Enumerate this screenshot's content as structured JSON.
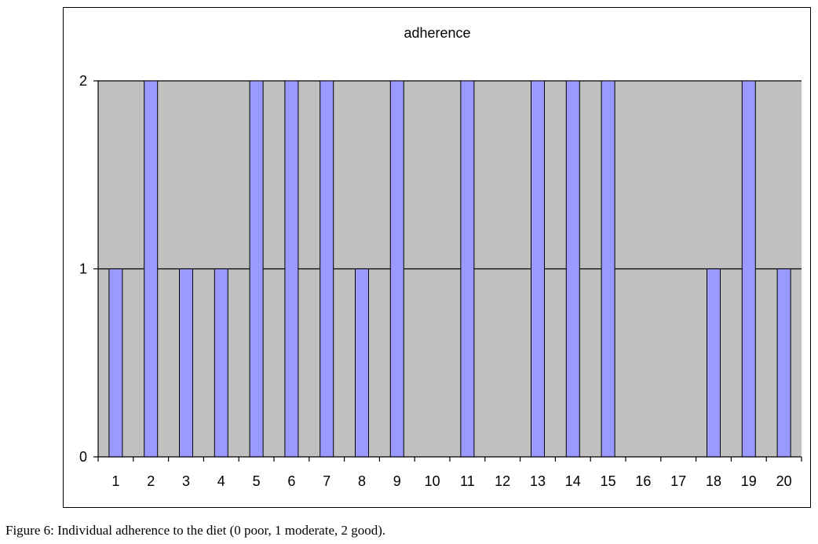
{
  "chart_data": {
    "type": "bar",
    "title": "adherence",
    "categories": [
      "1",
      "2",
      "3",
      "4",
      "5",
      "6",
      "7",
      "8",
      "9",
      "10",
      "11",
      "12",
      "13",
      "14",
      "15",
      "16",
      "17",
      "18",
      "19",
      "20"
    ],
    "values": [
      1,
      2,
      1,
      1,
      2,
      2,
      2,
      1,
      2,
      0,
      2,
      0,
      2,
      2,
      2,
      0,
      0,
      1,
      2,
      1
    ],
    "ylim": [
      0,
      2
    ],
    "yticks": [
      "0",
      "1",
      "2"
    ],
    "xlabel": "",
    "ylabel": "",
    "grid": true,
    "colors": {
      "bar_fill": "#9999ff",
      "bar_stroke": "#000000",
      "plot_background": "#c0c0c0"
    }
  },
  "caption": {
    "label": "Figure 6:",
    "text": " Individual adherence to the diet (0 poor, 1 moderate, 2 good)."
  }
}
